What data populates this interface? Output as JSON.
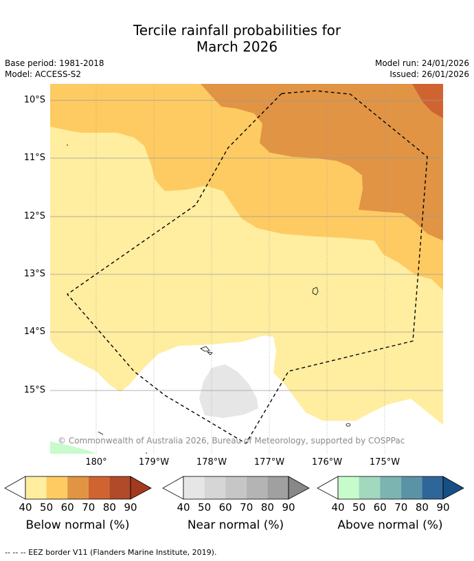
{
  "title_line1": "Tercile rainfall probabilities for",
  "title_line2": "March 2026",
  "base_period": "Base period: 1981-2018",
  "model": "Model: ACCESS-S2",
  "model_run": "Model run: 24/01/2026",
  "issued": "Issued: 26/01/2026",
  "latitude_ticks": [
    "10°S",
    "11°S",
    "12°S",
    "13°S",
    "14°S",
    "15°S"
  ],
  "longitude_ticks": [
    "180°",
    "179°W",
    "178°W",
    "177°W",
    "176°W",
    "175°W"
  ],
  "copyright": "© Commonwealth of Australia 2026, Bureau of Meteorology, supported by COSPPac",
  "colorbars": [
    {
      "label": "Below normal (%)",
      "ticks": [
        "40",
        "50",
        "60",
        "70",
        "80",
        "90"
      ],
      "colors": [
        "#ffeda0",
        "#fecb62",
        "#e09444",
        "#cf6431",
        "#b04a28",
        "#a33a1e"
      ]
    },
    {
      "label": "Near normal (%)",
      "ticks": [
        "40",
        "50",
        "60",
        "70",
        "80",
        "90"
      ],
      "colors": [
        "#e6e6e6",
        "#d6d6d6",
        "#c6c6c6",
        "#b4b4b4",
        "#a0a0a0",
        "#888888"
      ]
    },
    {
      "label": "Above normal (%)",
      "ticks": [
        "40",
        "50",
        "60",
        "70",
        "80",
        "90"
      ],
      "colors": [
        "#c7fbcc",
        "#a2d8bd",
        "#7cb4b1",
        "#5a93a5",
        "#2f6699",
        "#174f84"
      ]
    }
  ],
  "footnote": "--  --  -- EEZ border V11 (Flanders Marine Institute, 2019).",
  "map_colors": {
    "below_40_50": "#ffeda0",
    "below_50_60": "#fecb62",
    "below_60_70": "#e09444",
    "below_70_80": "#cf6431",
    "near_40_50": "#e6e6e6",
    "above_40_50": "#c7fbcc"
  }
}
